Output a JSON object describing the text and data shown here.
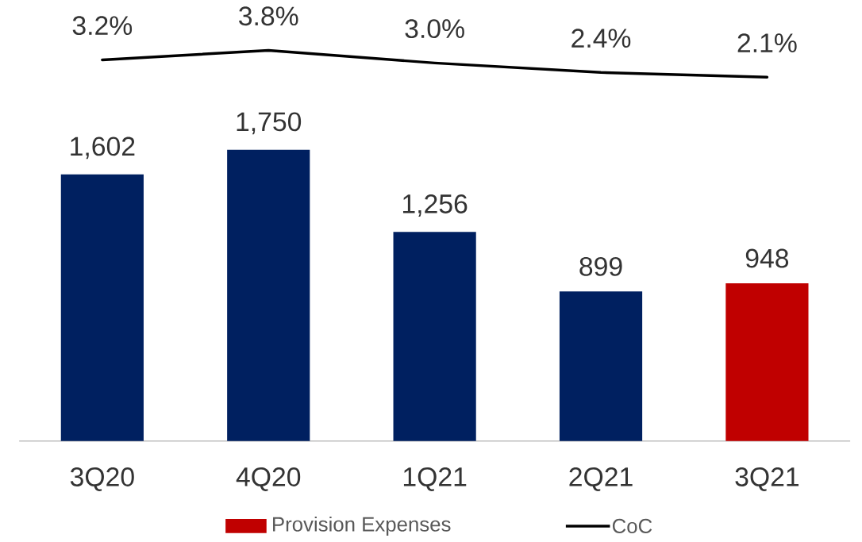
{
  "chart_data": [
    {
      "type": "bar",
      "categories": [
        "3Q20",
        "4Q20",
        "1Q21",
        "2Q21",
        "3Q21"
      ],
      "series": [
        {
          "name": "Provision Expenses",
          "type": "bar",
          "color": "#c00000",
          "colors": [
            "#002060",
            "#002060",
            "#002060",
            "#002060",
            "#c00000"
          ],
          "values": [
            1602,
            1750,
            1256,
            899,
            948
          ],
          "value_labels": [
            "1,602",
            "1,750",
            "1,256",
            "899",
            "948"
          ]
        }
      ],
      "legend": "bottom",
      "tick_labels": "x"
    },
    {
      "type": "line",
      "categories": [
        null,
        null,
        null,
        null,
        null
      ],
      "series": [
        {
          "name": "CoC",
          "color": "#000000",
          "values": [
            3.2,
            3.8,
            3.0,
            2.4,
            2.1
          ],
          "value_labels": [
            "3.2%",
            "3.8%",
            "3.0%",
            "2.4%",
            "2.1%"
          ]
        }
      ],
      "legend": "bottom",
      "tick_labels": false
    }
  ]
}
